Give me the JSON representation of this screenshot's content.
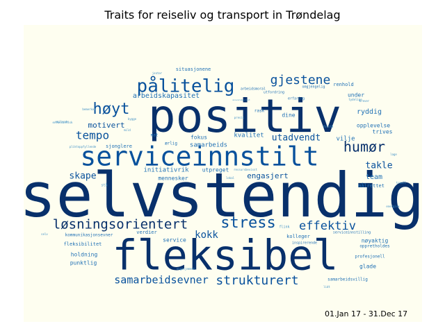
{
  "title": "Traits for reiseliv og transport in Trøndelag",
  "date_range": "01.Jan 17 - 31.Dec 17",
  "colors": {
    "background": "#fefef0",
    "palette": [
      "#08306b",
      "#08519c",
      "#2171b5",
      "#4292c6",
      "#6baed6"
    ]
  },
  "words": [
    {
      "text": "selvstendig",
      "weight": 1.0
    },
    {
      "text": "positiv",
      "weight": 0.95
    },
    {
      "text": "fleksibel",
      "weight": 0.85
    },
    {
      "text": "serviceinnstilt",
      "weight": 0.6
    },
    {
      "text": "pålitelig",
      "weight": 0.4
    },
    {
      "text": "løsningsorientert",
      "weight": 0.33
    },
    {
      "text": "stress",
      "weight": 0.33
    },
    {
      "text": "høyt",
      "weight": 0.32
    },
    {
      "text": "humør",
      "weight": 0.3
    },
    {
      "text": "gjestene",
      "weight": 0.28
    },
    {
      "text": "effektiv",
      "weight": 0.28
    },
    {
      "text": "strukturert",
      "weight": 0.27
    },
    {
      "text": "samarbeidsevner",
      "weight": 0.24
    },
    {
      "text": "tempo",
      "weight": 0.24
    },
    {
      "text": "kokk",
      "weight": 0.2
    },
    {
      "text": "utadvendt",
      "weight": 0.2
    },
    {
      "text": "skape",
      "weight": 0.19
    },
    {
      "text": "takle",
      "weight": 0.19
    },
    {
      "text": "motivert",
      "weight": 0.17
    },
    {
      "text": "engasjert",
      "weight": 0.17
    },
    {
      "text": "arbeidskapasitet",
      "weight": 0.16
    },
    {
      "text": "ryddig",
      "weight": 0.15
    },
    {
      "text": "team",
      "weight": 0.15
    },
    {
      "text": "samarbeids",
      "weight": 0.14
    },
    {
      "text": "kvalitet",
      "weight": 0.13
    },
    {
      "text": "vilje",
      "weight": 0.13
    },
    {
      "text": "opplevelse",
      "weight": 0.12
    },
    {
      "text": "trives",
      "weight": 0.12
    },
    {
      "text": "initiativrik",
      "weight": 0.12
    },
    {
      "text": "utpreget",
      "weight": 0.12
    },
    {
      "text": "holdning",
      "weight": 0.12
    },
    {
      "text": "punktlig",
      "weight": 0.12
    },
    {
      "text": "glade",
      "weight": 0.12
    },
    {
      "text": "nøyaktig",
      "weight": 0.12
    },
    {
      "text": "kolleger",
      "weight": 0.11
    },
    {
      "text": "fokus",
      "weight": 0.11
    },
    {
      "text": "dine",
      "weight": 0.11
    },
    {
      "text": "service",
      "weight": 0.11
    },
    {
      "text": "mennesker",
      "weight": 0.1
    },
    {
      "text": "verdier",
      "weight": 0.1
    },
    {
      "text": "fleksibilitet",
      "weight": 0.1
    },
    {
      "text": "under",
      "weight": 0.1
    },
    {
      "text": "renhold",
      "weight": 0.09
    },
    {
      "text": "sjonglere",
      "weight": 0.09
    },
    {
      "text": "rask",
      "weight": 0.08
    },
    {
      "text": "ærlig",
      "weight": 0.08
    },
    {
      "text": "mat",
      "weight": 0.08
    },
    {
      "text": "målrettet",
      "weight": 0.08
    },
    {
      "text": "profesjonell",
      "weight": 0.08
    },
    {
      "text": "samarbeidsvillig",
      "weight": 0.07
    },
    {
      "text": "oppretholdes",
      "weight": 0.08
    },
    {
      "text": "situasjonene",
      "weight": 0.08
    },
    {
      "text": "kommunikasjonsevner",
      "weight": 0.08
    },
    {
      "text": "inspirerende",
      "weight": 0.07
    },
    {
      "text": "serviceinnstilling",
      "weight": 0.07
    },
    {
      "text": "arbeidsmoral",
      "weight": 0.06
    },
    {
      "text": "utfordring",
      "weight": 0.06
    },
    {
      "text": "erfaring",
      "weight": 0.06
    },
    {
      "text": "omgjengelig",
      "weight": 0.06
    },
    {
      "text": "pliktoppfyllende",
      "weight": 0.05
    },
    {
      "text": "ressursbevisst",
      "weight": 0.05
    },
    {
      "text": "flink",
      "weight": 0.05
    },
    {
      "text": "engasjement",
      "weight": 0.05
    },
    {
      "text": "tydelige",
      "weight": 0.05
    },
    {
      "text": "krever",
      "weight": 0.05
    },
    {
      "text": "smilende",
      "weight": 0.05
    },
    {
      "text": "energisk",
      "weight": 0.05
    },
    {
      "text": "lage",
      "weight": 0.05
    },
    {
      "text": "lidt",
      "weight": 0.04
    },
    {
      "text": "entusiastisk",
      "weight": 0.05
    },
    {
      "text": "ansvarsbevisst",
      "weight": 0.04
    },
    {
      "text": "bygge",
      "weight": 0.04
    },
    {
      "text": "presis",
      "weight": 0.04
    },
    {
      "text": "forstå",
      "weight": 0.04
    },
    {
      "text": "stå",
      "weight": 0.05
    },
    {
      "text": "treall",
      "weight": 0.04
    },
    {
      "text": "lokal",
      "weight": 0.04
    },
    {
      "text": "jenter",
      "weight": 0.04
    },
    {
      "text": "mild",
      "weight": 0.04
    },
    {
      "text": "bemerkes",
      "weight": 0.04
    },
    {
      "text": "selv",
      "weight": 0.04
    }
  ]
}
